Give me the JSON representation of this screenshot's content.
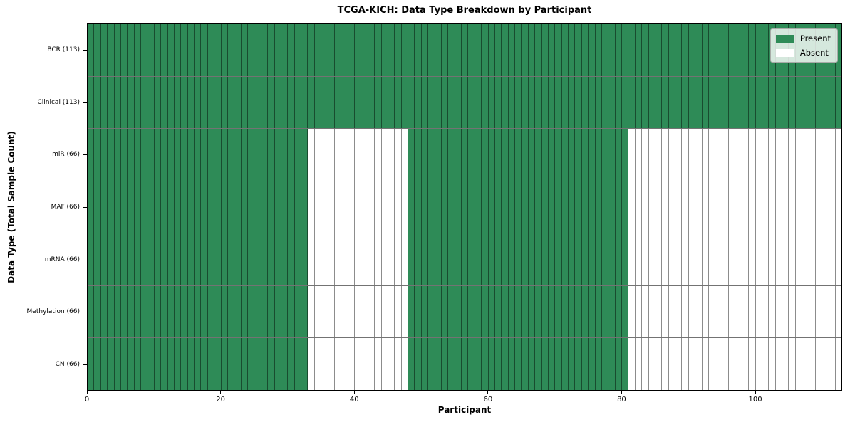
{
  "chart_data": {
    "type": "heatmap",
    "title": "TCGA-KICH: Data Type Breakdown by Participant",
    "xlabel": "Participant",
    "ylabel": "Data Type (Total Sample Count)",
    "n_participants": 113,
    "x_ticks": [
      0,
      20,
      40,
      60,
      80,
      100
    ],
    "x_range": [
      0,
      113
    ],
    "grid": false,
    "rows": [
      {
        "label": "BCR (113)",
        "data_type": "BCR",
        "total_sample_count": 113,
        "present_ranges": [
          [
            0,
            112
          ]
        ]
      },
      {
        "label": "Clinical (113)",
        "data_type": "Clinical",
        "total_sample_count": 113,
        "present_ranges": [
          [
            0,
            112
          ]
        ]
      },
      {
        "label": "miR (66)",
        "data_type": "miR",
        "total_sample_count": 66,
        "present_ranges": [
          [
            0,
            32
          ],
          [
            48,
            80
          ]
        ]
      },
      {
        "label": "MAF (66)",
        "data_type": "MAF",
        "total_sample_count": 66,
        "present_ranges": [
          [
            0,
            32
          ],
          [
            48,
            80
          ]
        ]
      },
      {
        "label": "mRNA (66)",
        "data_type": "mRNA",
        "total_sample_count": 66,
        "present_ranges": [
          [
            0,
            32
          ],
          [
            48,
            80
          ]
        ]
      },
      {
        "label": "Methylation (66)",
        "data_type": "Methylation",
        "total_sample_count": 66,
        "present_ranges": [
          [
            0,
            32
          ],
          [
            48,
            80
          ]
        ]
      },
      {
        "label": "CN (66)",
        "data_type": "CN",
        "total_sample_count": 66,
        "present_ranges": [
          [
            0,
            32
          ],
          [
            48,
            80
          ]
        ]
      }
    ],
    "legend": {
      "position": "upper right",
      "items": [
        {
          "label": "Present",
          "color": "#2e8b57"
        },
        {
          "label": "Absent",
          "color": "#ffffff"
        }
      ]
    },
    "colors": {
      "present": "#2e8b57",
      "absent": "#ffffff",
      "cell_edge": "rgba(0,0,0,0.45)",
      "spine": "#000000"
    }
  }
}
